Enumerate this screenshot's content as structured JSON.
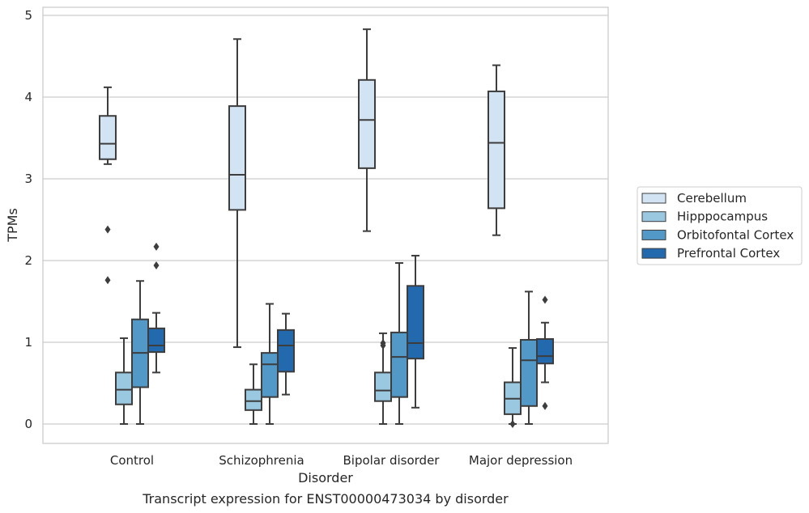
{
  "chart_data": {
    "type": "box",
    "caption": "Transcript expression for ENST00000473034 by disorder",
    "xlabel": "Disorder",
    "ylabel": "TPMs",
    "ylim": [
      -0.23,
      5.08
    ],
    "yticks": [
      0,
      1,
      2,
      3,
      4,
      5
    ],
    "grid": "horizontal",
    "legend_position": "right",
    "categories": [
      "Control",
      "Schizophrenia",
      "Bipolar disorder",
      "Major depression"
    ],
    "series": [
      {
        "name": "Cerebellum",
        "color": "#d2e3f3",
        "boxes": [
          {
            "min": 3.18,
            "q1": 3.24,
            "median": 3.43,
            "q3": 3.77,
            "max": 4.12,
            "outliers": [
              2.38,
              1.76
            ]
          },
          {
            "min": 0.94,
            "q1": 2.62,
            "median": 3.05,
            "q3": 3.89,
            "max": 4.71,
            "outliers": []
          },
          {
            "min": 2.36,
            "q1": 3.13,
            "median": 3.72,
            "q3": 4.21,
            "max": 4.83,
            "outliers": []
          },
          {
            "min": 2.31,
            "q1": 2.64,
            "median": 3.44,
            "q3": 4.07,
            "max": 4.39,
            "outliers": []
          }
        ]
      },
      {
        "name": "Hipppocampus",
        "color": "#9ac8e0",
        "boxes": [
          {
            "min": 0.0,
            "q1": 0.24,
            "median": 0.42,
            "q3": 0.63,
            "max": 1.05,
            "outliers": []
          },
          {
            "min": 0.0,
            "q1": 0.17,
            "median": 0.28,
            "q3": 0.42,
            "max": 0.73,
            "outliers": []
          },
          {
            "min": 0.0,
            "q1": 0.28,
            "median": 0.41,
            "q3": 0.63,
            "max": 1.11,
            "outliers": [
              0.96,
              0.99
            ]
          },
          {
            "min": 0.0,
            "q1": 0.12,
            "median": 0.31,
            "q3": 0.51,
            "max": 0.93,
            "outliers": [
              0.0
            ]
          }
        ]
      },
      {
        "name": "Orbitofontal Cortex",
        "color": "#5299c7",
        "boxes": [
          {
            "min": 0.0,
            "q1": 0.45,
            "median": 0.87,
            "q3": 1.28,
            "max": 1.75,
            "outliers": []
          },
          {
            "min": 0.0,
            "q1": 0.33,
            "median": 0.73,
            "q3": 0.87,
            "max": 1.47,
            "outliers": []
          },
          {
            "min": 0.0,
            "q1": 0.33,
            "median": 0.82,
            "q3": 1.12,
            "max": 1.97,
            "outliers": []
          },
          {
            "min": 0.0,
            "q1": 0.22,
            "median": 0.78,
            "q3": 1.03,
            "max": 1.62,
            "outliers": []
          }
        ]
      },
      {
        "name": "Prefrontal Cortex",
        "color": "#2269ad",
        "boxes": [
          {
            "min": 0.63,
            "q1": 0.88,
            "median": 0.96,
            "q3": 1.17,
            "max": 1.36,
            "outliers": [
              1.94,
              2.17
            ]
          },
          {
            "min": 0.36,
            "q1": 0.64,
            "median": 0.96,
            "q3": 1.15,
            "max": 1.35,
            "outliers": []
          },
          {
            "min": 0.2,
            "q1": 0.8,
            "median": 0.99,
            "q3": 1.69,
            "max": 2.06,
            "outliers": []
          },
          {
            "min": 0.51,
            "q1": 0.74,
            "median": 0.83,
            "q3": 1.04,
            "max": 1.24,
            "outliers": [
              1.52,
              0.22
            ]
          }
        ]
      }
    ]
  }
}
